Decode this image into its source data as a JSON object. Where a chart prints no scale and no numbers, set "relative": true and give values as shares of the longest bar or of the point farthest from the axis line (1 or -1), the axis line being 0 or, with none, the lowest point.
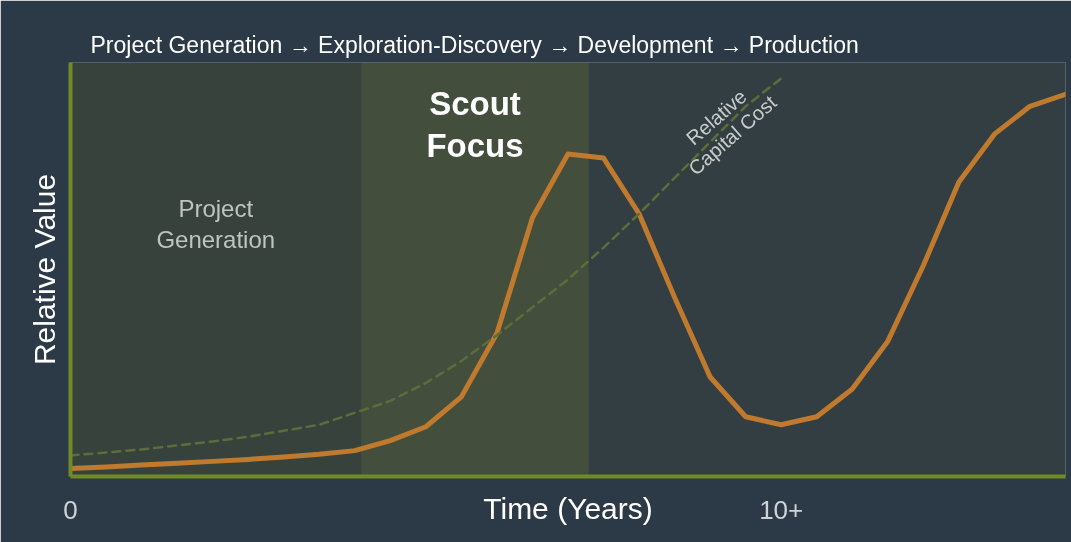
{
  "chart_data": {
    "type": "line",
    "title": "Project Generation → Exploration-Discovery → Development → Production",
    "xlabel": "Time (Years)",
    "ylabel": "Relative Value",
    "relative": true,
    "grid": false,
    "legend": false,
    "marker": "none",
    "categories": [
      "0",
      null,
      null,
      null,
      null,
      null,
      null,
      null,
      null,
      null,
      null,
      null,
      null,
      null,
      null,
      null,
      null,
      null,
      null,
      null,
      "10+",
      null,
      null,
      null,
      null,
      null,
      null,
      null,
      null
    ],
    "annotations": [
      "Project Generation",
      "Scout Focus"
    ],
    "series": [
      {
        "color": "#c07a2e",
        "line_style": "solid",
        "values": [
          0.02,
          0.024,
          0.029,
          0.033,
          0.038,
          0.043,
          0.049,
          0.056,
          0.065,
          0.09,
          0.125,
          0.2,
          0.36,
          0.65,
          0.81,
          0.8,
          0.66,
          0.45,
          0.25,
          0.15,
          0.13,
          0.15,
          0.22,
          0.34,
          0.53,
          0.74,
          0.86,
          0.93,
          0.96
        ]
      },
      {
        "name": "Relative Capital Cost",
        "color": "#5a6e3a",
        "line_style": "dashed",
        "values": [
          0.053,
          0.06,
          0.068,
          0.078,
          0.088,
          0.1,
          0.115,
          0.13,
          0.16,
          0.19,
          0.235,
          0.29,
          0.355,
          0.425,
          0.495,
          0.575,
          0.66,
          0.75,
          0.84,
          0.93,
          1.0,
          null,
          null,
          null,
          null,
          null,
          null,
          null,
          null
        ]
      }
    ]
  }
}
